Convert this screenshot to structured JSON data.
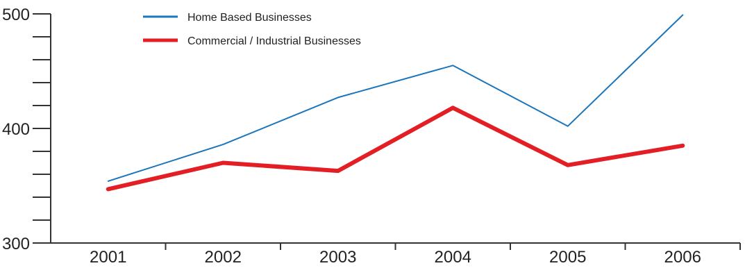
{
  "chart_data": {
    "type": "line",
    "categories": [
      "2001",
      "2002",
      "2003",
      "2004",
      "2005",
      "2006"
    ],
    "ylim": [
      300,
      500
    ],
    "y_ticks": [
      300,
      400,
      500
    ],
    "y_minor_step": 20,
    "grid": false,
    "legend_position": "top-left",
    "title": "",
    "xlabel": "",
    "ylabel": "",
    "series": [
      {
        "name": "Home Based Businesses",
        "color": "#1b75bb",
        "line_style": "thin",
        "values": [
          354,
          386,
          427,
          455,
          402,
          499
        ]
      },
      {
        "name": "Commercial / Industrial Businesses",
        "color": "#e31e24",
        "line_style": "thick",
        "values": [
          347,
          370,
          363,
          418,
          368,
          385
        ]
      }
    ]
  }
}
